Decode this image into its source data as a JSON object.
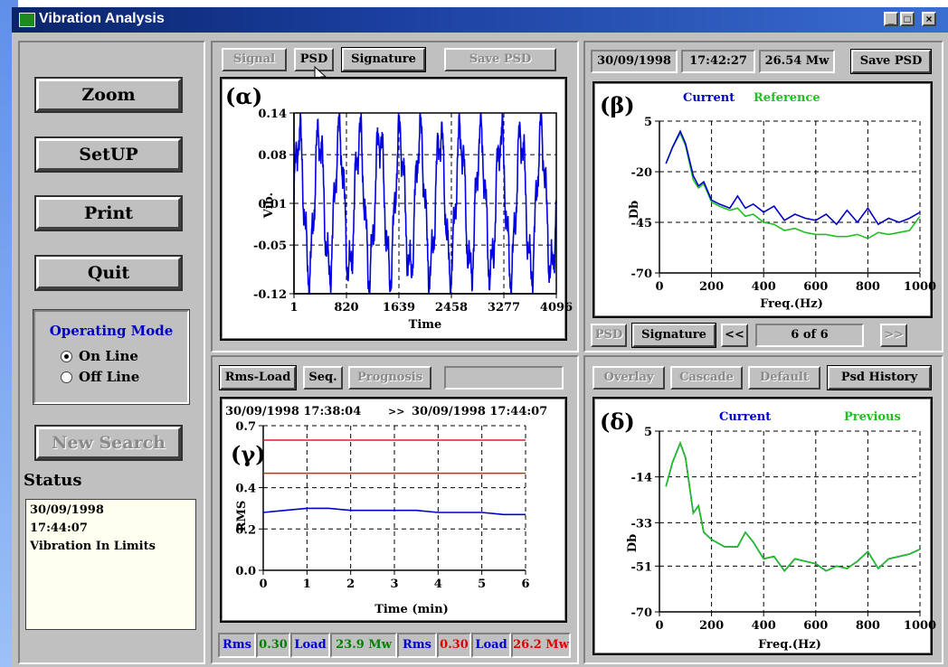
{
  "window": {
    "title": "Vibration Analysis",
    "controls": [
      "_",
      "□",
      "×"
    ]
  },
  "left": {
    "zoom": "Zoom",
    "setup": "SetUP",
    "print": "Print",
    "quit": "Quit",
    "mode_title": "Operating Mode",
    "mode_online": "On Line",
    "mode_offline": "Off Line",
    "new_search": "New Search",
    "status_label": "Status",
    "status_date": "30/09/1998",
    "status_time": "17:44:07",
    "status_msg": "Vibration In Limits"
  },
  "p1": {
    "btn_signal": "Signal",
    "btn_psd": "PSD",
    "btn_signature": "Signature",
    "btn_save": "Save PSD",
    "tag": "(α)",
    "ylabel": "Vib.",
    "xlabel": "Time",
    "yticks": [
      "0.14",
      "0.08",
      "0.01",
      "-0.05",
      "-0.12"
    ],
    "xticks": [
      "1",
      "820",
      "1639",
      "2458",
      "3277",
      "4096"
    ]
  },
  "p2": {
    "date": "30/09/1998",
    "time": "17:42:27",
    "power": "26.54 Mw",
    "btn_save": "Save PSD",
    "tag": "(β)",
    "legend_current": "Current",
    "legend_reference": "Reference",
    "ylabel": "Db",
    "xlabel": "Freq.(Hz)",
    "yticks": [
      "5",
      "-20",
      "-45",
      "-70"
    ],
    "xticks": [
      "0",
      "200",
      "400",
      "600",
      "800",
      "1000"
    ],
    "btn_psd": "PSD",
    "btn_signature": "Signature",
    "btn_prev": "<<",
    "page": "6 of 6",
    "btn_next": ">>"
  },
  "p3": {
    "btn_rmsload": "Rms-Load",
    "btn_seq": "Seq.",
    "btn_prognosis": "Prognosis",
    "range_start": "30/09/1998  17:38:04",
    "range_sep": ">>",
    "range_end": "30/09/1998  17:44:07",
    "tag": "(γ)",
    "ylabel": "RMS",
    "xlabel": "Time (min)",
    "yticks": [
      "0.7",
      "0.4",
      "0.2",
      "0.0"
    ],
    "xticks": [
      "0",
      "1",
      "2",
      "3",
      "4",
      "5",
      "6"
    ],
    "status": [
      {
        "text": "Rms",
        "color": "#0000cc"
      },
      {
        "text": "0.30",
        "color": "#008000"
      },
      {
        "text": "Load",
        "color": "#0000cc"
      },
      {
        "text": "23.9 Mw",
        "color": "#008000"
      },
      {
        "text": "Rms",
        "color": "#0000cc"
      },
      {
        "text": "0.30",
        "color": "#e00000"
      },
      {
        "text": "Load",
        "color": "#0000cc"
      },
      {
        "text": "26.2 Mw",
        "color": "#e00000"
      }
    ]
  },
  "p4": {
    "btn_overlay": "Overlay",
    "btn_cascade": "Cascade",
    "btn_default": "Default",
    "btn_history": "Psd History",
    "tag": "(δ)",
    "legend_current": "Current",
    "legend_previous": "Previous",
    "ylabel": "Db",
    "xlabel": "Freq.(Hz)",
    "yticks": [
      "5",
      "-14",
      "-33",
      "-51",
      "-70"
    ],
    "xticks": [
      "0",
      "200",
      "400",
      "600",
      "800",
      "1000"
    ]
  },
  "colors": {
    "current": "#0000cc",
    "reference": "#20c020",
    "limit": "#e02020"
  },
  "chart_data": [
    {
      "type": "line",
      "ylabel": "Vib.",
      "xlabel": "Time",
      "ylim": [
        -0.12,
        0.14
      ],
      "xlim": [
        1,
        4096
      ],
      "series": [
        {
          "amplitude": 0.1,
          "cycles": 13
        }
      ]
    },
    {
      "type": "line",
      "ylabel": "Db",
      "xlabel": "Freq.(Hz)",
      "ylim": [
        -70,
        5
      ],
      "xlim": [
        0,
        1000
      ],
      "x": [
        25,
        50,
        80,
        100,
        130,
        150,
        170,
        200,
        230,
        270,
        300,
        330,
        360,
        400,
        440,
        480,
        520,
        560,
        600,
        640,
        680,
        720,
        760,
        800,
        840,
        880,
        920,
        960,
        1000
      ],
      "series": [
        {
          "name": "Current",
          "values": [
            -16,
            -8,
            0,
            -6,
            -22,
            -27,
            -25,
            -34,
            -36,
            -38,
            -32,
            -38,
            -36,
            -40,
            -37,
            -44,
            -41,
            -43,
            -44,
            -41,
            -46,
            -39,
            -45,
            -38,
            -46,
            -43,
            -45,
            -43,
            -40
          ]
        },
        {
          "name": "Reference",
          "values": [
            -16,
            -8,
            -1,
            -7,
            -24,
            -28,
            -26,
            -35,
            -37,
            -39,
            -38,
            -42,
            -41,
            -45,
            -46,
            -49,
            -48,
            -50,
            -51,
            -51,
            -52,
            -52,
            -51,
            -53,
            -50,
            -51,
            -50,
            -49,
            -42
          ]
        }
      ]
    },
    {
      "type": "line",
      "ylabel": "RMS",
      "xlabel": "Time (min)",
      "ylim": [
        0,
        0.7
      ],
      "xlim": [
        0,
        6
      ],
      "x": [
        0,
        0.5,
        1,
        1.5,
        2,
        2.5,
        3,
        3.5,
        4,
        4.5,
        5,
        5.5,
        6
      ],
      "series": [
        {
          "name": "Rms",
          "values": [
            0.28,
            0.29,
            0.3,
            0.3,
            0.29,
            0.29,
            0.29,
            0.29,
            0.28,
            0.28,
            0.28,
            0.27,
            0.27
          ]
        }
      ],
      "limits": [
        0.63,
        0.47
      ]
    },
    {
      "type": "line",
      "ylabel": "Db",
      "xlabel": "Freq.(Hz)",
      "ylim": [
        -70,
        5
      ],
      "xlim": [
        0,
        1000
      ],
      "x": [
        25,
        50,
        80,
        100,
        130,
        150,
        170,
        200,
        250,
        300,
        330,
        360,
        400,
        440,
        480,
        520,
        560,
        600,
        640,
        680,
        720,
        760,
        800,
        840,
        880,
        920,
        960,
        1000
      ],
      "series": [
        {
          "name": "Current",
          "values": [
            -18,
            -8,
            0,
            -6,
            -29,
            -26,
            -37,
            -40,
            -43,
            -43,
            -37,
            -41,
            -48,
            -47,
            -53,
            -48,
            -49,
            -50,
            -53,
            -51,
            -52,
            -49,
            -45,
            -52,
            -48,
            -47,
            -46,
            -44
          ]
        },
        {
          "name": "Previous",
          "values": [
            -18,
            -8,
            0,
            -6,
            -29,
            -26,
            -37,
            -40,
            -43,
            -43,
            -37,
            -41,
            -48,
            -47,
            -53,
            -48,
            -49,
            -50,
            -53,
            -51,
            -52,
            -49,
            -45,
            -52,
            -48,
            -47,
            -46,
            -44
          ]
        }
      ]
    }
  ]
}
